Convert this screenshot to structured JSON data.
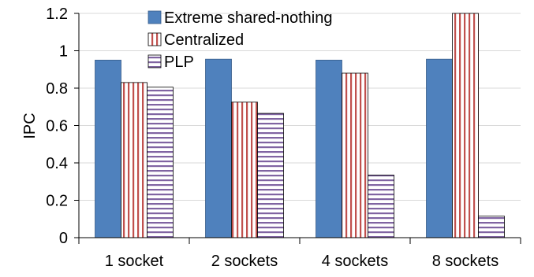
{
  "chart_data": {
    "type": "bar",
    "categories": [
      "1 socket",
      "2 sockets",
      "4 sockets",
      "8 sockets"
    ],
    "series": [
      {
        "name": "Extreme shared-nothing",
        "values": [
          0.95,
          0.955,
          0.95,
          0.955
        ],
        "color": "#4f81bd",
        "pattern": "solid"
      },
      {
        "name": "Centralized",
        "values": [
          0.83,
          0.725,
          0.88,
          1.22
        ],
        "color": "#c0504d",
        "pattern": "vertical-stripes"
      },
      {
        "name": "PLP",
        "values": [
          0.805,
          0.665,
          0.335,
          0.115
        ],
        "color": "#8064a2",
        "pattern": "horizontal-stripes"
      }
    ],
    "title": "",
    "xlabel": "",
    "ylabel": "IPC",
    "ylim": [
      0,
      1.2
    ],
    "yticks": [
      "0",
      "0.2",
      "0.4",
      "0.6",
      "0.8",
      "1",
      "1.2"
    ],
    "grid": true,
    "legend_position": "top-center"
  }
}
